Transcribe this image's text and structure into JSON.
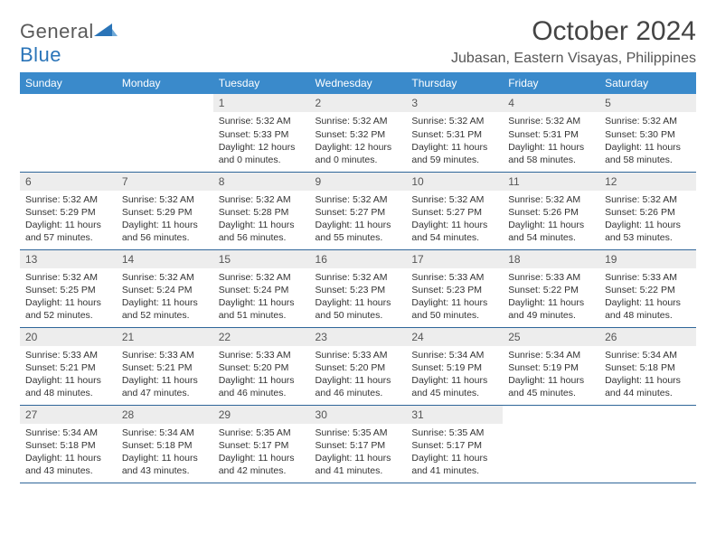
{
  "logo": {
    "text1": "General",
    "text2": "Blue"
  },
  "title": "October 2024",
  "location": "Jubasan, Eastern Visayas, Philippines",
  "colors": {
    "header_bg": "#3a8acb",
    "daynum_bg": "#ededed",
    "row_border": "#2f6699",
    "logo_blue": "#2a74b8"
  },
  "day_headers": [
    "Sunday",
    "Monday",
    "Tuesday",
    "Wednesday",
    "Thursday",
    "Friday",
    "Saturday"
  ],
  "weeks": [
    [
      null,
      null,
      {
        "n": "1",
        "sr": "Sunrise: 5:32 AM",
        "ss": "Sunset: 5:33 PM",
        "dl": "Daylight: 12 hours and 0 minutes."
      },
      {
        "n": "2",
        "sr": "Sunrise: 5:32 AM",
        "ss": "Sunset: 5:32 PM",
        "dl": "Daylight: 12 hours and 0 minutes."
      },
      {
        "n": "3",
        "sr": "Sunrise: 5:32 AM",
        "ss": "Sunset: 5:31 PM",
        "dl": "Daylight: 11 hours and 59 minutes."
      },
      {
        "n": "4",
        "sr": "Sunrise: 5:32 AM",
        "ss": "Sunset: 5:31 PM",
        "dl": "Daylight: 11 hours and 58 minutes."
      },
      {
        "n": "5",
        "sr": "Sunrise: 5:32 AM",
        "ss": "Sunset: 5:30 PM",
        "dl": "Daylight: 11 hours and 58 minutes."
      }
    ],
    [
      {
        "n": "6",
        "sr": "Sunrise: 5:32 AM",
        "ss": "Sunset: 5:29 PM",
        "dl": "Daylight: 11 hours and 57 minutes."
      },
      {
        "n": "7",
        "sr": "Sunrise: 5:32 AM",
        "ss": "Sunset: 5:29 PM",
        "dl": "Daylight: 11 hours and 56 minutes."
      },
      {
        "n": "8",
        "sr": "Sunrise: 5:32 AM",
        "ss": "Sunset: 5:28 PM",
        "dl": "Daylight: 11 hours and 56 minutes."
      },
      {
        "n": "9",
        "sr": "Sunrise: 5:32 AM",
        "ss": "Sunset: 5:27 PM",
        "dl": "Daylight: 11 hours and 55 minutes."
      },
      {
        "n": "10",
        "sr": "Sunrise: 5:32 AM",
        "ss": "Sunset: 5:27 PM",
        "dl": "Daylight: 11 hours and 54 minutes."
      },
      {
        "n": "11",
        "sr": "Sunrise: 5:32 AM",
        "ss": "Sunset: 5:26 PM",
        "dl": "Daylight: 11 hours and 54 minutes."
      },
      {
        "n": "12",
        "sr": "Sunrise: 5:32 AM",
        "ss": "Sunset: 5:26 PM",
        "dl": "Daylight: 11 hours and 53 minutes."
      }
    ],
    [
      {
        "n": "13",
        "sr": "Sunrise: 5:32 AM",
        "ss": "Sunset: 5:25 PM",
        "dl": "Daylight: 11 hours and 52 minutes."
      },
      {
        "n": "14",
        "sr": "Sunrise: 5:32 AM",
        "ss": "Sunset: 5:24 PM",
        "dl": "Daylight: 11 hours and 52 minutes."
      },
      {
        "n": "15",
        "sr": "Sunrise: 5:32 AM",
        "ss": "Sunset: 5:24 PM",
        "dl": "Daylight: 11 hours and 51 minutes."
      },
      {
        "n": "16",
        "sr": "Sunrise: 5:32 AM",
        "ss": "Sunset: 5:23 PM",
        "dl": "Daylight: 11 hours and 50 minutes."
      },
      {
        "n": "17",
        "sr": "Sunrise: 5:33 AM",
        "ss": "Sunset: 5:23 PM",
        "dl": "Daylight: 11 hours and 50 minutes."
      },
      {
        "n": "18",
        "sr": "Sunrise: 5:33 AM",
        "ss": "Sunset: 5:22 PM",
        "dl": "Daylight: 11 hours and 49 minutes."
      },
      {
        "n": "19",
        "sr": "Sunrise: 5:33 AM",
        "ss": "Sunset: 5:22 PM",
        "dl": "Daylight: 11 hours and 48 minutes."
      }
    ],
    [
      {
        "n": "20",
        "sr": "Sunrise: 5:33 AM",
        "ss": "Sunset: 5:21 PM",
        "dl": "Daylight: 11 hours and 48 minutes."
      },
      {
        "n": "21",
        "sr": "Sunrise: 5:33 AM",
        "ss": "Sunset: 5:21 PM",
        "dl": "Daylight: 11 hours and 47 minutes."
      },
      {
        "n": "22",
        "sr": "Sunrise: 5:33 AM",
        "ss": "Sunset: 5:20 PM",
        "dl": "Daylight: 11 hours and 46 minutes."
      },
      {
        "n": "23",
        "sr": "Sunrise: 5:33 AM",
        "ss": "Sunset: 5:20 PM",
        "dl": "Daylight: 11 hours and 46 minutes."
      },
      {
        "n": "24",
        "sr": "Sunrise: 5:34 AM",
        "ss": "Sunset: 5:19 PM",
        "dl": "Daylight: 11 hours and 45 minutes."
      },
      {
        "n": "25",
        "sr": "Sunrise: 5:34 AM",
        "ss": "Sunset: 5:19 PM",
        "dl": "Daylight: 11 hours and 45 minutes."
      },
      {
        "n": "26",
        "sr": "Sunrise: 5:34 AM",
        "ss": "Sunset: 5:18 PM",
        "dl": "Daylight: 11 hours and 44 minutes."
      }
    ],
    [
      {
        "n": "27",
        "sr": "Sunrise: 5:34 AM",
        "ss": "Sunset: 5:18 PM",
        "dl": "Daylight: 11 hours and 43 minutes."
      },
      {
        "n": "28",
        "sr": "Sunrise: 5:34 AM",
        "ss": "Sunset: 5:18 PM",
        "dl": "Daylight: 11 hours and 43 minutes."
      },
      {
        "n": "29",
        "sr": "Sunrise: 5:35 AM",
        "ss": "Sunset: 5:17 PM",
        "dl": "Daylight: 11 hours and 42 minutes."
      },
      {
        "n": "30",
        "sr": "Sunrise: 5:35 AM",
        "ss": "Sunset: 5:17 PM",
        "dl": "Daylight: 11 hours and 41 minutes."
      },
      {
        "n": "31",
        "sr": "Sunrise: 5:35 AM",
        "ss": "Sunset: 5:17 PM",
        "dl": "Daylight: 11 hours and 41 minutes."
      },
      null,
      null
    ]
  ]
}
